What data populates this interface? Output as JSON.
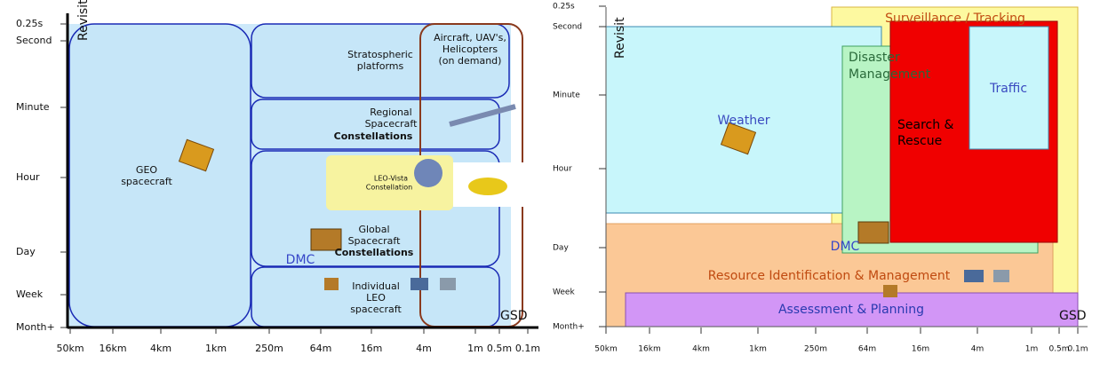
{
  "left_panel": {
    "axis_title": "Revisit",
    "gsd_label": "GSD",
    "y_labels": [
      "0.25s",
      "Second",
      "Minute",
      "Hour",
      "Day",
      "Week",
      "Month+"
    ],
    "x_labels": [
      "50km",
      "16km",
      "4km",
      "1km",
      "250m",
      "64m",
      "16m",
      "4m",
      "1m",
      "0.5m",
      "0.1m"
    ],
    "regions": {
      "geo": [
        "GEO",
        "spacecraft"
      ],
      "stratospheric": [
        "Stratospheric",
        "platforms"
      ],
      "aircraft": [
        "Aircraft, UAV's,",
        "Helicopters",
        "(on demand)"
      ],
      "regional": [
        "Regional",
        "Spacecraft",
        "Constellations"
      ],
      "leo_vista": [
        "LEO-Vista",
        "Constellation"
      ],
      "global": [
        "Global",
        "Spacecraft",
        "Constellations"
      ],
      "dmc": "DMC",
      "individual": [
        "Individual",
        "LEO",
        "spacecraft"
      ]
    }
  },
  "right_panel": {
    "axis_title": "Revisit",
    "gsd_label": "GSD",
    "y_labels": [
      "0.25s",
      "Second",
      "Minute",
      "Hour",
      "Day",
      "Week",
      "Month+"
    ],
    "x_labels": [
      "50km",
      "16km",
      "4km",
      "1km",
      "250m",
      "64m",
      "16m",
      "4m",
      "1m",
      "0.5m",
      "0.1m"
    ],
    "regions": {
      "surveillance": "Surveillance / Tracking",
      "weather": "Weather",
      "disaster": [
        "Disaster",
        "Management"
      ],
      "search_rescue": [
        "Search &",
        "Rescue"
      ],
      "traffic": "Traffic",
      "dmc": "DMC",
      "resource": "Resource Identification & Management",
      "assessment": "Assessment & Planning"
    }
  }
}
